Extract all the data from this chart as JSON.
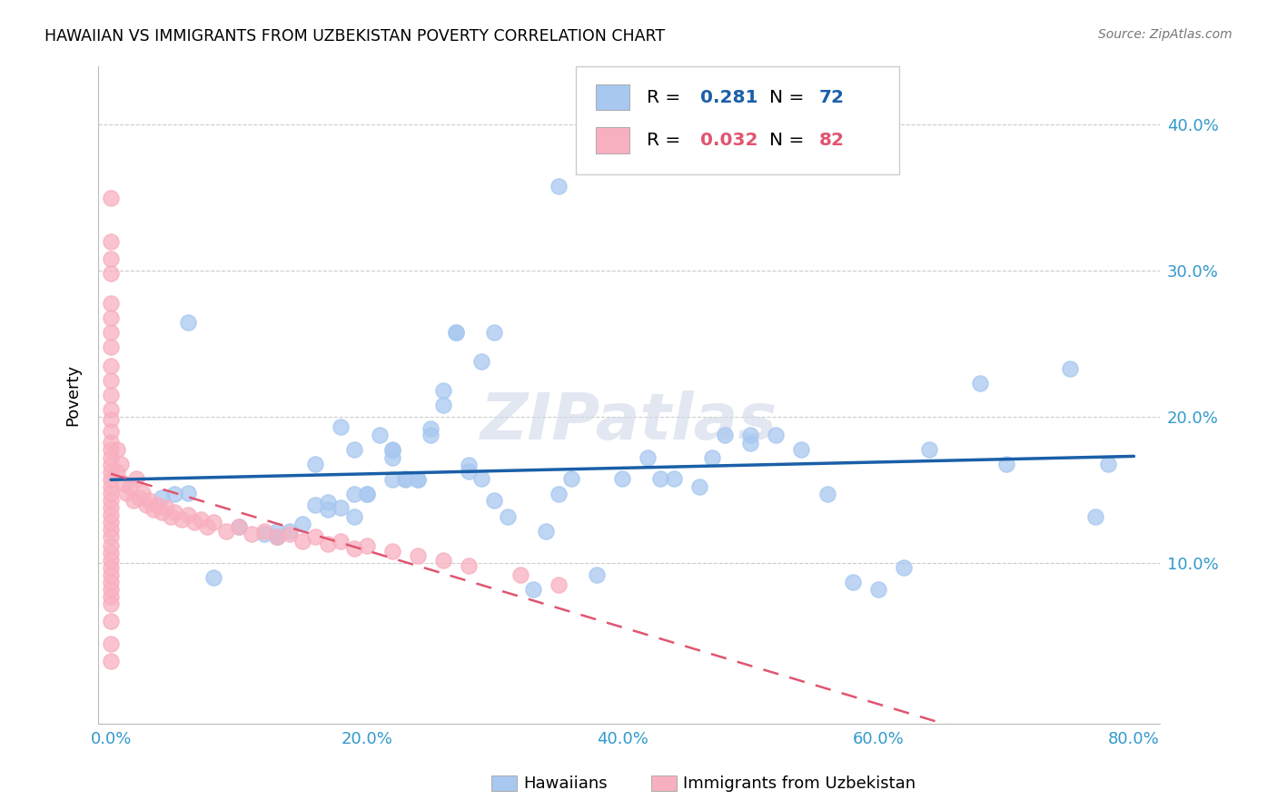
{
  "title": "HAWAIIAN VS IMMIGRANTS FROM UZBEKISTAN POVERTY CORRELATION CHART",
  "source": "Source: ZipAtlas.com",
  "ylabel": "Poverty",
  "x_tick_labels": [
    "0.0%",
    "20.0%",
    "40.0%",
    "60.0%",
    "80.0%"
  ],
  "x_tick_values": [
    0.0,
    0.2,
    0.4,
    0.6,
    0.8
  ],
  "y_tick_labels": [
    "10.0%",
    "20.0%",
    "30.0%",
    "40.0%"
  ],
  "y_tick_values": [
    0.1,
    0.2,
    0.3,
    0.4
  ],
  "xlim": [
    -0.01,
    0.82
  ],
  "ylim": [
    -0.01,
    0.44
  ],
  "blue_R": 0.281,
  "blue_N": 72,
  "pink_R": 0.032,
  "pink_N": 82,
  "blue_color": "#a8c8f0",
  "pink_color": "#f8b0c0",
  "blue_line_color": "#1a5fa8",
  "pink_line_color": "#e05570",
  "legend_label_blue": "Hawaiians",
  "legend_label_pink": "Immigrants from Uzbekistan",
  "watermark": "ZIPatlas",
  "blue_x": [
    0.04,
    0.06,
    0.08,
    0.1,
    0.12,
    0.13,
    0.14,
    0.15,
    0.16,
    0.17,
    0.17,
    0.18,
    0.19,
    0.19,
    0.2,
    0.2,
    0.21,
    0.22,
    0.22,
    0.22,
    0.23,
    0.24,
    0.24,
    0.25,
    0.25,
    0.26,
    0.26,
    0.27,
    0.28,
    0.28,
    0.29,
    0.29,
    0.3,
    0.3,
    0.31,
    0.33,
    0.34,
    0.35,
    0.35,
    0.36,
    0.38,
    0.4,
    0.42,
    0.43,
    0.44,
    0.46,
    0.47,
    0.48,
    0.5,
    0.5,
    0.52,
    0.54,
    0.56,
    0.58,
    0.6,
    0.62,
    0.64,
    0.68,
    0.7,
    0.75,
    0.77,
    0.78,
    0.05,
    0.06,
    0.16,
    0.18,
    0.19,
    0.22,
    0.23,
    0.27,
    0.13,
    0.13
  ],
  "blue_y": [
    0.145,
    0.265,
    0.09,
    0.125,
    0.12,
    0.118,
    0.122,
    0.127,
    0.14,
    0.137,
    0.142,
    0.138,
    0.147,
    0.132,
    0.147,
    0.147,
    0.188,
    0.157,
    0.172,
    0.177,
    0.157,
    0.157,
    0.157,
    0.192,
    0.188,
    0.218,
    0.208,
    0.258,
    0.167,
    0.163,
    0.158,
    0.238,
    0.143,
    0.258,
    0.132,
    0.082,
    0.122,
    0.147,
    0.358,
    0.158,
    0.092,
    0.158,
    0.172,
    0.158,
    0.158,
    0.152,
    0.172,
    0.188,
    0.182,
    0.188,
    0.188,
    0.178,
    0.147,
    0.087,
    0.082,
    0.097,
    0.178,
    0.223,
    0.168,
    0.233,
    0.132,
    0.168,
    0.147,
    0.148,
    0.168,
    0.193,
    0.178,
    0.178,
    0.158,
    0.258,
    0.118,
    0.122
  ],
  "pink_x": [
    0.0,
    0.0,
    0.0,
    0.0,
    0.0,
    0.0,
    0.0,
    0.0,
    0.0,
    0.0,
    0.0,
    0.0,
    0.0,
    0.0,
    0.0,
    0.0,
    0.0,
    0.0,
    0.0,
    0.0,
    0.0,
    0.0,
    0.0,
    0.0,
    0.0,
    0.0,
    0.0,
    0.0,
    0.0,
    0.0,
    0.0,
    0.0,
    0.0,
    0.0,
    0.0,
    0.0,
    0.0,
    0.0,
    0.0,
    0.0,
    0.005,
    0.005,
    0.008,
    0.01,
    0.012,
    0.015,
    0.018,
    0.02,
    0.022,
    0.025,
    0.028,
    0.03,
    0.033,
    0.036,
    0.04,
    0.043,
    0.047,
    0.05,
    0.055,
    0.06,
    0.065,
    0.07,
    0.075,
    0.08,
    0.09,
    0.1,
    0.11,
    0.12,
    0.13,
    0.14,
    0.15,
    0.16,
    0.17,
    0.18,
    0.19,
    0.2,
    0.22,
    0.24,
    0.26,
    0.28,
    0.32,
    0.35
  ],
  "pink_y": [
    0.35,
    0.32,
    0.308,
    0.298,
    0.278,
    0.268,
    0.258,
    0.248,
    0.235,
    0.225,
    0.215,
    0.205,
    0.198,
    0.19,
    0.183,
    0.178,
    0.172,
    0.167,
    0.162,
    0.157,
    0.152,
    0.148,
    0.143,
    0.138,
    0.133,
    0.128,
    0.123,
    0.118,
    0.112,
    0.107,
    0.102,
    0.097,
    0.092,
    0.087,
    0.082,
    0.077,
    0.072,
    0.06,
    0.045,
    0.033,
    0.178,
    0.162,
    0.168,
    0.155,
    0.148,
    0.152,
    0.143,
    0.158,
    0.145,
    0.148,
    0.14,
    0.143,
    0.137,
    0.14,
    0.135,
    0.138,
    0.132,
    0.135,
    0.13,
    0.133,
    0.128,
    0.13,
    0.125,
    0.128,
    0.122,
    0.125,
    0.12,
    0.122,
    0.118,
    0.12,
    0.115,
    0.118,
    0.113,
    0.115,
    0.11,
    0.112,
    0.108,
    0.105,
    0.102,
    0.098,
    0.092,
    0.085
  ]
}
